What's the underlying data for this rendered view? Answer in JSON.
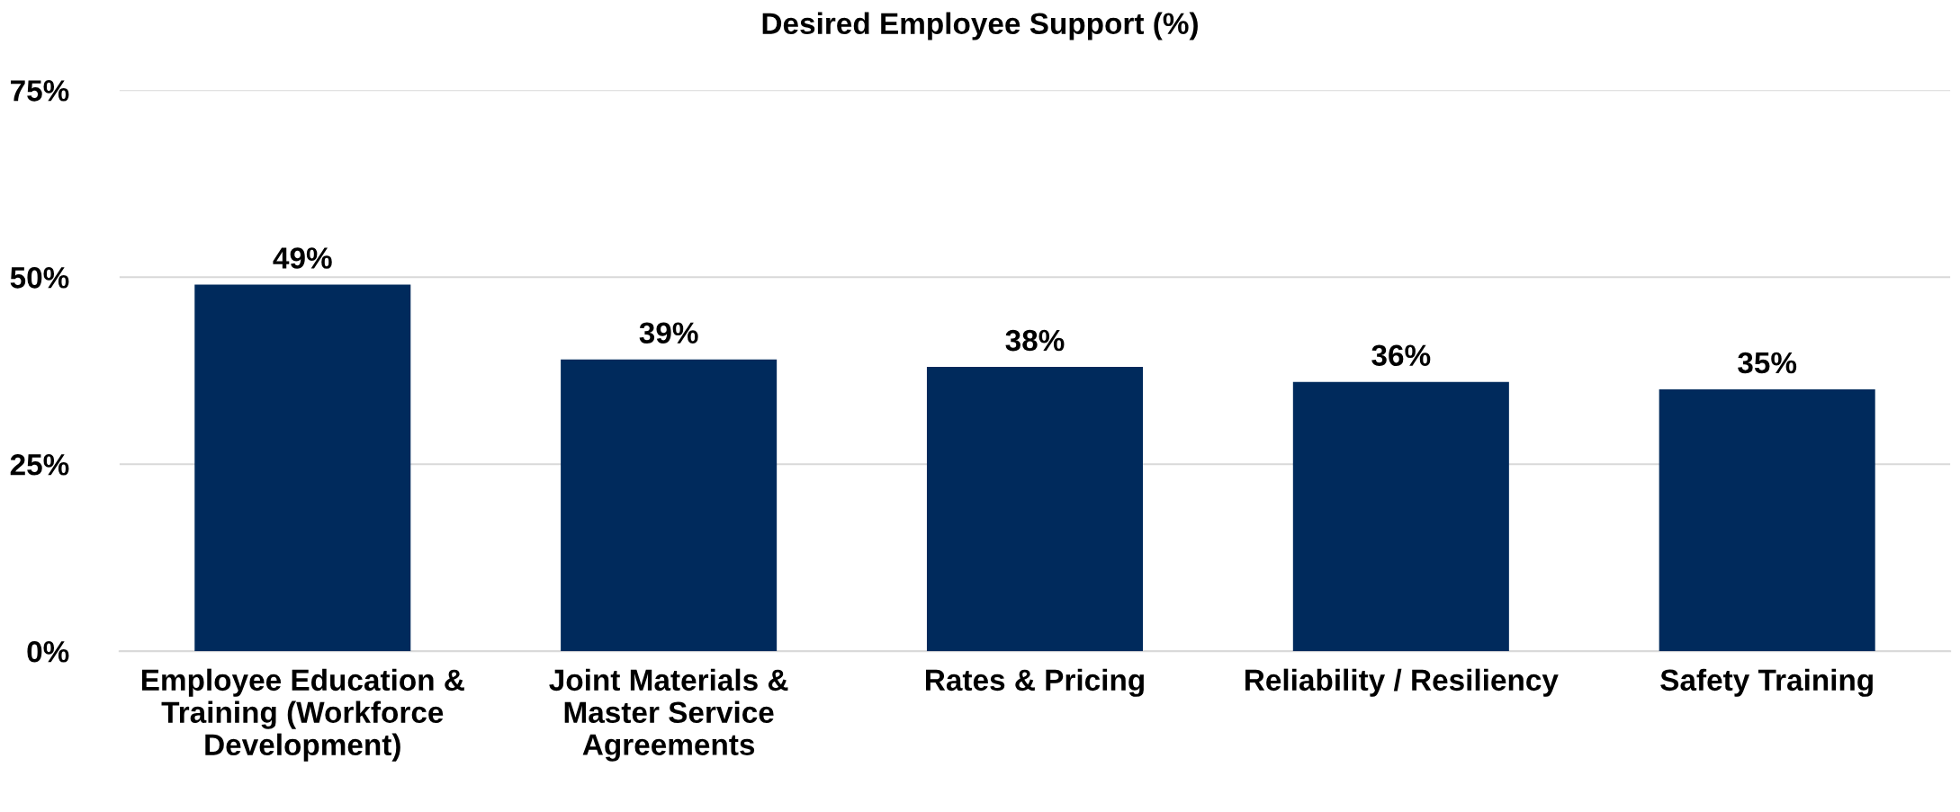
{
  "chart_data": {
    "type": "bar",
    "title": "Desired Employee Support (%)",
    "categories": [
      "Employee Education &\nTraining (Workforce\nDevelopment)",
      "Joint Materials &\nMaster Service\nAgreements",
      "Rates & Pricing",
      "Reliability / Resiliency",
      "Safety Training"
    ],
    "values": [
      49,
      39,
      38,
      36,
      35
    ],
    "value_labels": [
      "49%",
      "39%",
      "38%",
      "36%",
      "35%"
    ],
    "color": "#002a5c",
    "ylim": [
      0,
      75
    ],
    "yticks": [
      {
        "value": 0,
        "label": "0%"
      },
      {
        "value": 25,
        "label": "25%"
      },
      {
        "value": 50,
        "label": "50%"
      },
      {
        "value": 75,
        "label": "75%"
      }
    ],
    "grid": "y",
    "legend": false
  }
}
